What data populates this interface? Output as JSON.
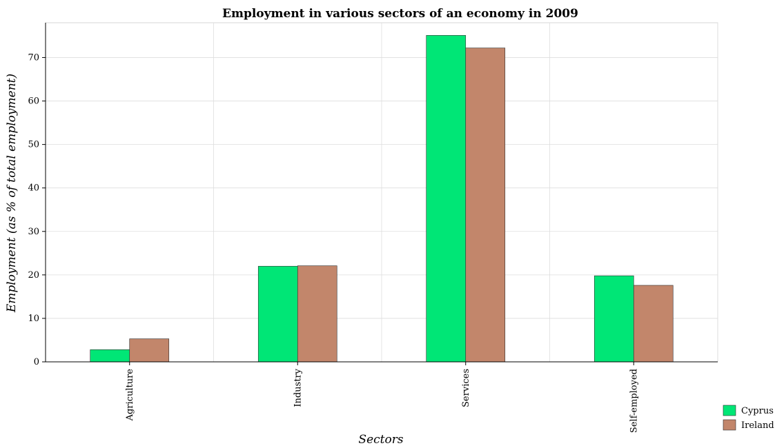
{
  "chart_data": {
    "type": "bar",
    "title": "Employment in various sectors of an economy in 2009",
    "xlabel": "Sectors",
    "ylabel": "Employment (as % of total employment)",
    "categories": [
      "Agriculture",
      "Industry",
      "Services",
      "Self-employed"
    ],
    "series": [
      {
        "name": "Cyprus",
        "color": "#00e676",
        "values": [
          2.8,
          22.0,
          75.1,
          19.8
        ]
      },
      {
        "name": "Ireland",
        "color": "#c2866b",
        "values": [
          5.3,
          22.1,
          72.2,
          17.6
        ]
      }
    ],
    "ylim": [
      0,
      78
    ],
    "yticks": [
      0,
      10,
      20,
      30,
      40,
      50,
      60,
      70
    ],
    "grid": true,
    "legend_position": "bottom-right"
  }
}
